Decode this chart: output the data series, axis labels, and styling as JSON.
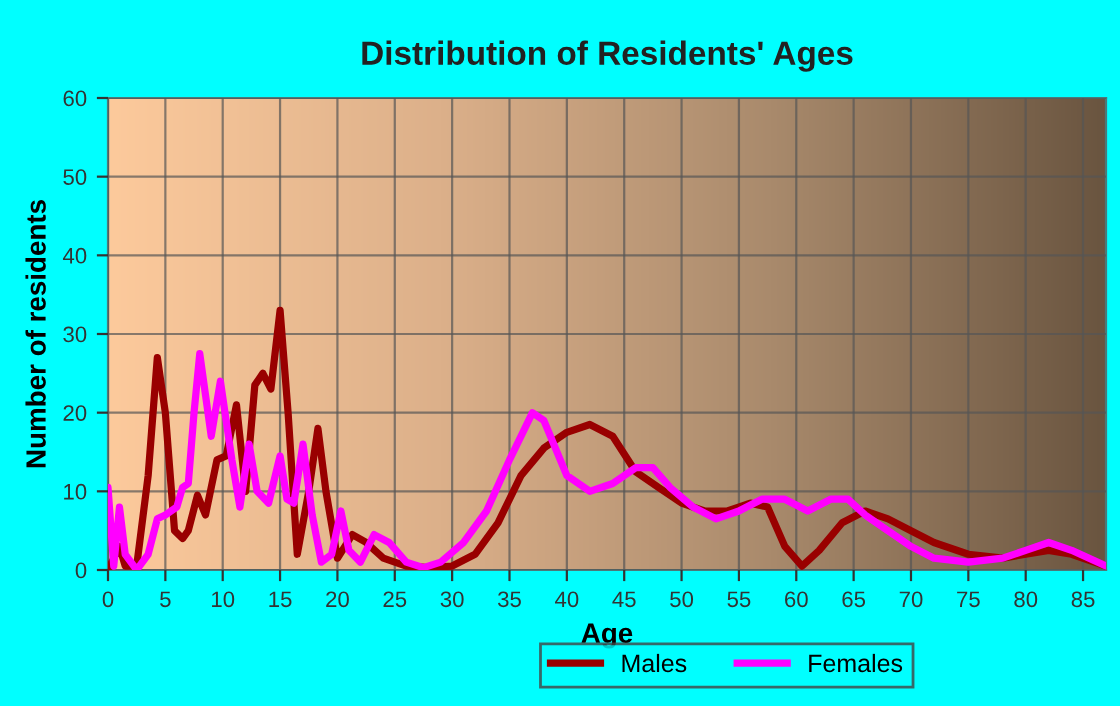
{
  "chart_data": {
    "type": "line",
    "title": "Distribution of Residents' Ages",
    "xlabel": "Age",
    "ylabel": "Number of residents",
    "xlim": [
      0,
      87
    ],
    "xticks": [
      0,
      5,
      10,
      15,
      20,
      25,
      30,
      35,
      40,
      45,
      50,
      55,
      60,
      65,
      70,
      75,
      80,
      85
    ],
    "ylim": [
      0,
      60
    ],
    "yticks": [
      0,
      10,
      20,
      30,
      40,
      50,
      60
    ],
    "grid": true,
    "legend": "bottom",
    "line_style": "solid",
    "marker": "none",
    "series": [
      {
        "name": "Males",
        "color": "#990000",
        "x": [
          0,
          1,
          1.5,
          2.5,
          3.5,
          4.3,
          5,
          5.8,
          6.5,
          7,
          7.8,
          8.5,
          9.5,
          10.3,
          11.2,
          12,
          12.8,
          13.5,
          14.2,
          15,
          15.7,
          16.5,
          17.5,
          18.3,
          19,
          20,
          21.3,
          22.5,
          24,
          26,
          28,
          30,
          32,
          34,
          36,
          38,
          40,
          42,
          44,
          46,
          48,
          50,
          52,
          54,
          56,
          57.5,
          59,
          60.5,
          62,
          64,
          66,
          68,
          70,
          72,
          75,
          78,
          80,
          82,
          84,
          87
        ],
        "values": [
          0,
          3,
          0.5,
          0.5,
          12,
          27,
          20,
          5,
          4,
          5,
          9.5,
          7,
          14,
          14.5,
          21,
          10,
          23.5,
          25,
          23,
          33,
          20,
          2,
          10,
          18,
          10,
          1.5,
          4.5,
          3.5,
          1.5,
          0.5,
          0.3,
          0.5,
          2,
          6,
          12,
          15.5,
          17.5,
          18.5,
          17,
          12.5,
          10.5,
          8.5,
          7.5,
          7.5,
          8.5,
          8,
          3,
          0.5,
          2.5,
          6,
          7.5,
          6.5,
          5,
          3.5,
          2,
          1.5,
          2,
          2.5,
          2,
          0.5
        ]
      },
      {
        "name": "Females",
        "color": "#ff00ff",
        "x": [
          0,
          0.5,
          1,
          1.5,
          2.5,
          3.5,
          4.3,
          5,
          6,
          6.5,
          7,
          7.5,
          8,
          9,
          9.8,
          10.8,
          11.5,
          12.3,
          13,
          14,
          15,
          15.6,
          16.2,
          17,
          17.8,
          18.6,
          19.5,
          20.3,
          21,
          22,
          23.2,
          24.5,
          26,
          27.5,
          29,
          31,
          33,
          35,
          37,
          38,
          40,
          42,
          44,
          46,
          47.5,
          49,
          51,
          53,
          55,
          57,
          59,
          61,
          63,
          64.5,
          66,
          68,
          70,
          72,
          75,
          78,
          80,
          82,
          84,
          87
        ],
        "values": [
          10.5,
          0.5,
          8,
          2,
          0,
          2,
          6.5,
          7,
          8,
          10.5,
          11,
          20,
          27.5,
          17,
          24,
          14,
          8,
          16,
          10,
          8.5,
          14.5,
          9,
          8.5,
          16,
          7,
          1,
          2,
          7.5,
          2.5,
          1,
          4.5,
          3.5,
          1,
          0.3,
          1,
          3.5,
          7.5,
          14,
          20,
          19,
          12,
          10,
          11,
          13,
          13,
          10.5,
          8,
          6.5,
          7.5,
          9,
          9,
          7.5,
          9,
          9,
          7,
          5,
          3,
          1.5,
          1,
          1.5,
          2.5,
          3.5,
          2.5,
          0.5
        ]
      }
    ]
  }
}
